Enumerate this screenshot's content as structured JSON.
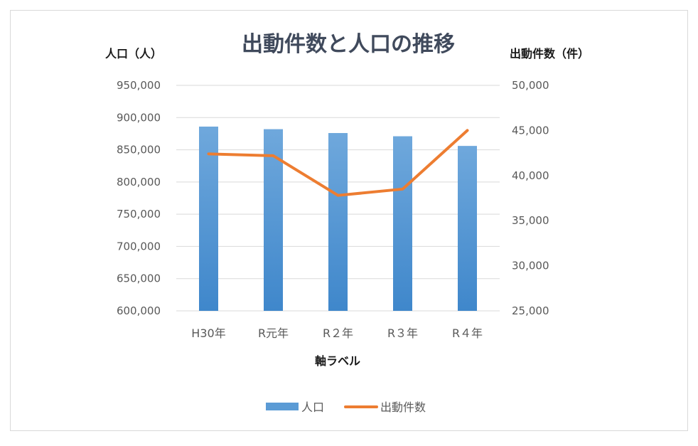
{
  "chart_data": {
    "type": "bar",
    "title": "出動件数と人口の推移",
    "xlabel": "軸ラベル",
    "ylabel": "人口（人）",
    "y2label": "出動件数（件）",
    "categories": [
      "H30年",
      "R元年",
      "R２年",
      "R３年",
      "R４年"
    ],
    "ylim": [
      600000,
      950000
    ],
    "y2lim": [
      25000,
      50000
    ],
    "yticks": [
      "600,000",
      "650,000",
      "700,000",
      "750,000",
      "800,000",
      "850,000",
      "900,000",
      "950,000"
    ],
    "y2ticks": [
      "25,000",
      "30,000",
      "35,000",
      "40,000",
      "45,000",
      "50,000"
    ],
    "grid": true,
    "legend_position": "bottom",
    "series": [
      {
        "name": "人口",
        "type": "bar",
        "axis": "left",
        "color": "#5b9bd5",
        "values": [
          886000,
          882000,
          876000,
          871000,
          856000
        ]
      },
      {
        "name": "出動件数",
        "type": "line",
        "axis": "right",
        "color": "#ed7d31",
        "values": [
          42400,
          42200,
          37800,
          38500,
          45000
        ]
      }
    ]
  }
}
